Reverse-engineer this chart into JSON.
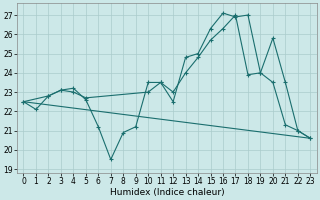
{
  "xlabel": "Humidex (Indice chaleur)",
  "bg_color": "#cce8e8",
  "grid_color": "#aacccc",
  "line_color": "#1a6e6e",
  "xlim": [
    -0.5,
    23.5
  ],
  "ylim": [
    18.8,
    27.6
  ],
  "yticks": [
    19,
    20,
    21,
    22,
    23,
    24,
    25,
    26,
    27
  ],
  "xticks": [
    0,
    1,
    2,
    3,
    4,
    5,
    6,
    7,
    8,
    9,
    10,
    11,
    12,
    13,
    14,
    15,
    16,
    17,
    18,
    19,
    20,
    21,
    22,
    23
  ],
  "line1_x": [
    0,
    1,
    2,
    3,
    4,
    5,
    6,
    7,
    8,
    9,
    10,
    11,
    12,
    13,
    14,
    15,
    16,
    17,
    18,
    19,
    20,
    21,
    22,
    23
  ],
  "line1_y": [
    22.5,
    22.1,
    22.8,
    23.1,
    23.2,
    22.6,
    21.2,
    19.5,
    20.9,
    21.2,
    23.5,
    23.5,
    22.5,
    24.8,
    25.0,
    26.3,
    27.1,
    26.9,
    27.0,
    24.0,
    23.5,
    21.3,
    21.0,
    20.6
  ],
  "line2_x": [
    0,
    2,
    3,
    4,
    5,
    10,
    11,
    12,
    13,
    14,
    15,
    16,
    17,
    18,
    19,
    20,
    21,
    22,
    23
  ],
  "line2_y": [
    22.5,
    22.8,
    23.1,
    23.0,
    22.7,
    23.0,
    23.5,
    23.0,
    24.0,
    24.8,
    25.7,
    26.3,
    27.0,
    23.9,
    24.0,
    25.8,
    23.5,
    21.0,
    20.6
  ],
  "line3_x": [
    0,
    23
  ],
  "line3_y": [
    22.5,
    20.6
  ]
}
